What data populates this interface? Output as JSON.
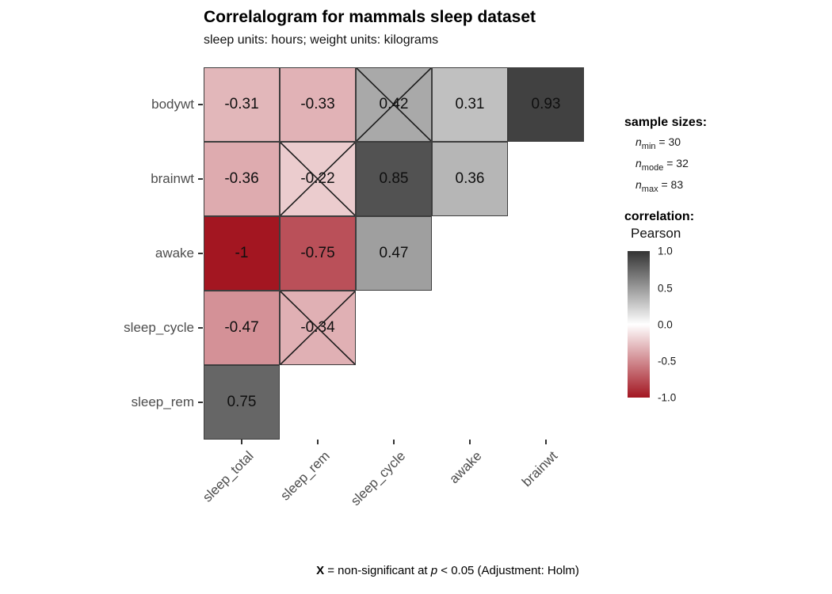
{
  "title": "Correlalogram for mammals sleep dataset",
  "subtitle": "sleep units: hours; weight units: kilograms",
  "legend": {
    "sample_sizes": {
      "title": "sample sizes:",
      "items": [
        {
          "symbol": "n",
          "subscript": "min",
          "value": "= 30"
        },
        {
          "symbol": "n",
          "subscript": "mode",
          "value": "= 32"
        },
        {
          "symbol": "n",
          "subscript": "max",
          "value": "= 83"
        }
      ]
    },
    "correlation": {
      "title": "correlation:",
      "method": "Pearson",
      "ticks": [
        "1.0",
        "0.5",
        "0.0",
        "-0.5",
        "-1.0"
      ],
      "color_positive": "#333333",
      "color_zero": "#FFFFFF",
      "color_negative": "#A31621"
    }
  },
  "caption": {
    "bold": "X",
    "text_1": " = non-significant at ",
    "italic": "p",
    "text_2": " < 0.05 (Adjustment: Holm)"
  },
  "chart_data": {
    "type": "heatmap",
    "title": "Correlalogram for mammals sleep dataset",
    "subtitle": "sleep units: hours; weight units: kilograms",
    "y_categories": [
      "bodywt",
      "brainwt",
      "awake",
      "sleep_cycle",
      "sleep_rem"
    ],
    "x_categories": [
      "sleep_total",
      "sleep_rem",
      "sleep_cycle",
      "awake",
      "brainwt"
    ],
    "colorscale": {
      "domain": [
        -1,
        0,
        1
      ],
      "colors": [
        "#A31621",
        "#FFFFFF",
        "#333333"
      ]
    },
    "legend_position": "right",
    "cells": [
      {
        "row": "bodywt",
        "col": "sleep_total",
        "value": -0.31,
        "label": "-0.31",
        "significant": true
      },
      {
        "row": "bodywt",
        "col": "sleep_rem",
        "value": -0.33,
        "label": "-0.33",
        "significant": true
      },
      {
        "row": "bodywt",
        "col": "sleep_cycle",
        "value": 0.42,
        "label": "0.42",
        "significant": false
      },
      {
        "row": "bodywt",
        "col": "awake",
        "value": 0.31,
        "label": "0.31",
        "significant": true
      },
      {
        "row": "bodywt",
        "col": "brainwt",
        "value": 0.93,
        "label": "0.93",
        "significant": true
      },
      {
        "row": "brainwt",
        "col": "sleep_total",
        "value": -0.36,
        "label": "-0.36",
        "significant": true
      },
      {
        "row": "brainwt",
        "col": "sleep_rem",
        "value": -0.22,
        "label": "-0.22",
        "significant": false
      },
      {
        "row": "brainwt",
        "col": "sleep_cycle",
        "value": 0.85,
        "label": "0.85",
        "significant": true
      },
      {
        "row": "brainwt",
        "col": "awake",
        "value": 0.36,
        "label": "0.36",
        "significant": true
      },
      {
        "row": "awake",
        "col": "sleep_total",
        "value": -1,
        "label": "-1",
        "significant": true
      },
      {
        "row": "awake",
        "col": "sleep_rem",
        "value": -0.75,
        "label": "-0.75",
        "significant": true
      },
      {
        "row": "awake",
        "col": "sleep_cycle",
        "value": 0.47,
        "label": "0.47",
        "significant": true
      },
      {
        "row": "sleep_cycle",
        "col": "sleep_total",
        "value": -0.47,
        "label": "-0.47",
        "significant": true
      },
      {
        "row": "sleep_cycle",
        "col": "sleep_rem",
        "value": -0.34,
        "label": "-0.34",
        "significant": false
      },
      {
        "row": "sleep_rem",
        "col": "sleep_total",
        "value": 0.75,
        "label": "0.75",
        "significant": true
      }
    ]
  }
}
